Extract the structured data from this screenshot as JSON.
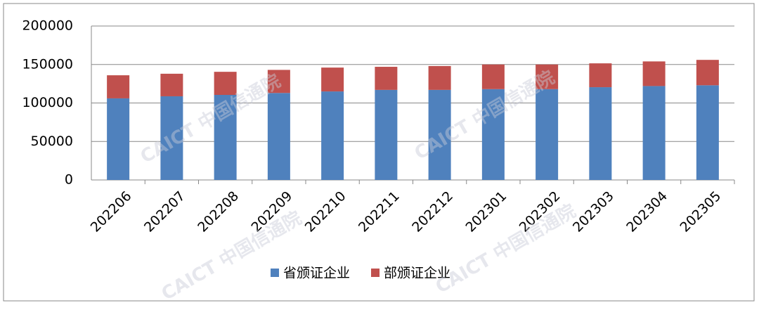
{
  "chart_data": {
    "type": "stacked_bar",
    "categories": [
      "202206",
      "202207",
      "202208",
      "202209",
      "202210",
      "202211",
      "202212",
      "202301",
      "202302",
      "202303",
      "202304",
      "202305"
    ],
    "series": [
      {
        "name": "省颁证企业",
        "color": "#4f81bd",
        "values": [
          106000,
          108700,
          110500,
          113000,
          115000,
          117000,
          117000,
          118000,
          118000,
          120500,
          122000,
          123000
        ]
      },
      {
        "name": "部颁证企业",
        "color": "#c0504d",
        "values": [
          30000,
          29300,
          30000,
          30000,
          31000,
          30000,
          31000,
          32000,
          32000,
          31000,
          32000,
          33000
        ]
      }
    ],
    "ylim": [
      0,
      200000
    ],
    "yticks": [
      0,
      50000,
      100000,
      150000,
      200000
    ],
    "grid": true,
    "legend": "bottom",
    "watermark": "CAICT 中国信通院"
  }
}
